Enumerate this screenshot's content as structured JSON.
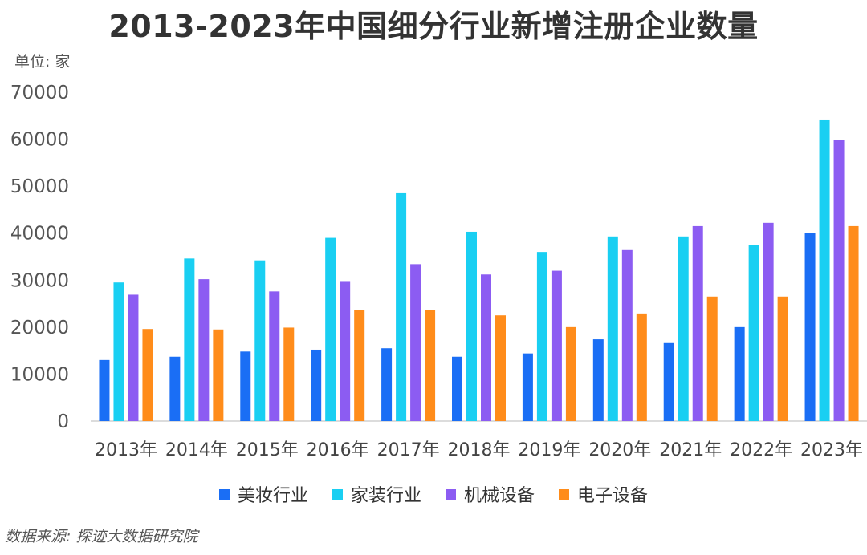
{
  "chart_data": {
    "type": "bar",
    "title": "2013-2023年中国细分行业新增注册企业数量",
    "unit_label": "单位: 家",
    "source": "数据来源:  探迹大数据研究院",
    "categories": [
      "2013年",
      "2014年",
      "2015年",
      "2016年",
      "2017年",
      "2018年",
      "2019年",
      "2020年",
      "2021年",
      "2022年",
      "2023年"
    ],
    "yticks": [
      "0",
      "10000",
      "20000",
      "30000",
      "40000",
      "50000",
      "60000",
      "70000"
    ],
    "ylim": [
      0,
      70000
    ],
    "grid": false,
    "legend_position": "bottom",
    "series": [
      {
        "name": "美妆行业",
        "color": "#1A6EF5",
        "values": [
          13000,
          13700,
          14800,
          15200,
          15500,
          13700,
          14400,
          17400,
          16600,
          20000,
          40000
        ]
      },
      {
        "name": "家装行业",
        "color": "#19CFF2",
        "values": [
          29500,
          34600,
          34200,
          39000,
          48500,
          40300,
          36000,
          39300,
          39300,
          37500,
          64200
        ]
      },
      {
        "name": "机械设备",
        "color": "#8C5CF2",
        "values": [
          26900,
          30200,
          27600,
          29800,
          33400,
          31200,
          32000,
          36400,
          41500,
          42200,
          59800
        ]
      },
      {
        "name": "电子设备",
        "color": "#FF8C1A",
        "values": [
          19600,
          19500,
          19900,
          23700,
          23600,
          22500,
          20000,
          22900,
          26500,
          26500,
          41500
        ]
      }
    ]
  }
}
